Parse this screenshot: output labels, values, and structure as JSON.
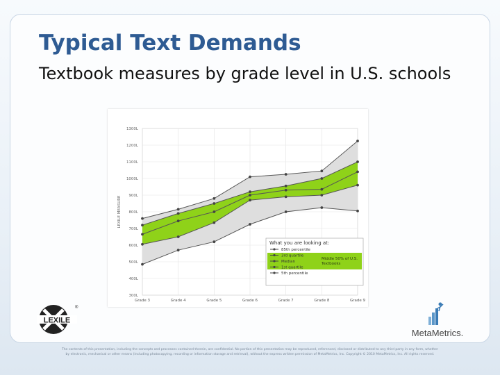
{
  "slide": {
    "title": "Typical Text Demands",
    "subtitle": "Textbook measures by grade level in U.S. schools",
    "footer_line1": "The contents of this presentation, including the concepts and processes contained therein, are confidential. No portion of this presentation may be reproduced, referenced, disclosed or distributed to any third party in any form, whether",
    "footer_line2": "by electronic, mechanical or other means (including photocopying, recording or information storage and retrieval), without the express written permission of MetaMetrics, Inc. Copyright © 2010 MetaMetrics, Inc. All rights reserved."
  },
  "logos": {
    "lexile_text": "LEXILE",
    "lexile_reg": "®",
    "metametrics_text": "MetaMetrics."
  },
  "colors": {
    "title": "#2e5b93",
    "band_outer": "#dedede",
    "band_inner": "#8fd219",
    "line": "#555555"
  },
  "chart_data": {
    "type": "line",
    "ylabel": "LEXILE MEASURE",
    "ylim": [
      300,
      1300
    ],
    "yticks": [
      300,
      400,
      500,
      600,
      700,
      800,
      900,
      1000,
      1100,
      1200,
      1300
    ],
    "ytick_labels": [
      "300L",
      "400L",
      "500L",
      "600L",
      "700L",
      "800L",
      "900L",
      "1000L",
      "1100L",
      "1200L",
      "1300L"
    ],
    "categories": [
      "Grade 3",
      "Grade 4",
      "Grade 5",
      "Grade 6",
      "Grade 7",
      "Grade 8",
      "Grade 9"
    ],
    "series": [
      {
        "name": "85th percentile",
        "values": [
          760,
          815,
          880,
          1010,
          1025,
          1045,
          1225
        ]
      },
      {
        "name": "3rd quartile",
        "values": [
          720,
          790,
          850,
          920,
          955,
          1000,
          1100
        ]
      },
      {
        "name": "Median",
        "values": [
          665,
          745,
          800,
          900,
          930,
          935,
          1040
        ]
      },
      {
        "name": "1st quartile",
        "values": [
          605,
          650,
          735,
          870,
          890,
          900,
          960
        ]
      },
      {
        "name": "5th percentile",
        "values": [
          485,
          570,
          620,
          725,
          800,
          825,
          805
        ]
      }
    ],
    "legend": {
      "title": "What you are looking at:",
      "items": [
        "85th percentile",
        "3rd quartile",
        "Median",
        "1st quartile",
        "5th percentile"
      ],
      "band_note": "Middle 50% of U.S. Textbooks",
      "position": "bottom-right"
    },
    "grid": true
  }
}
